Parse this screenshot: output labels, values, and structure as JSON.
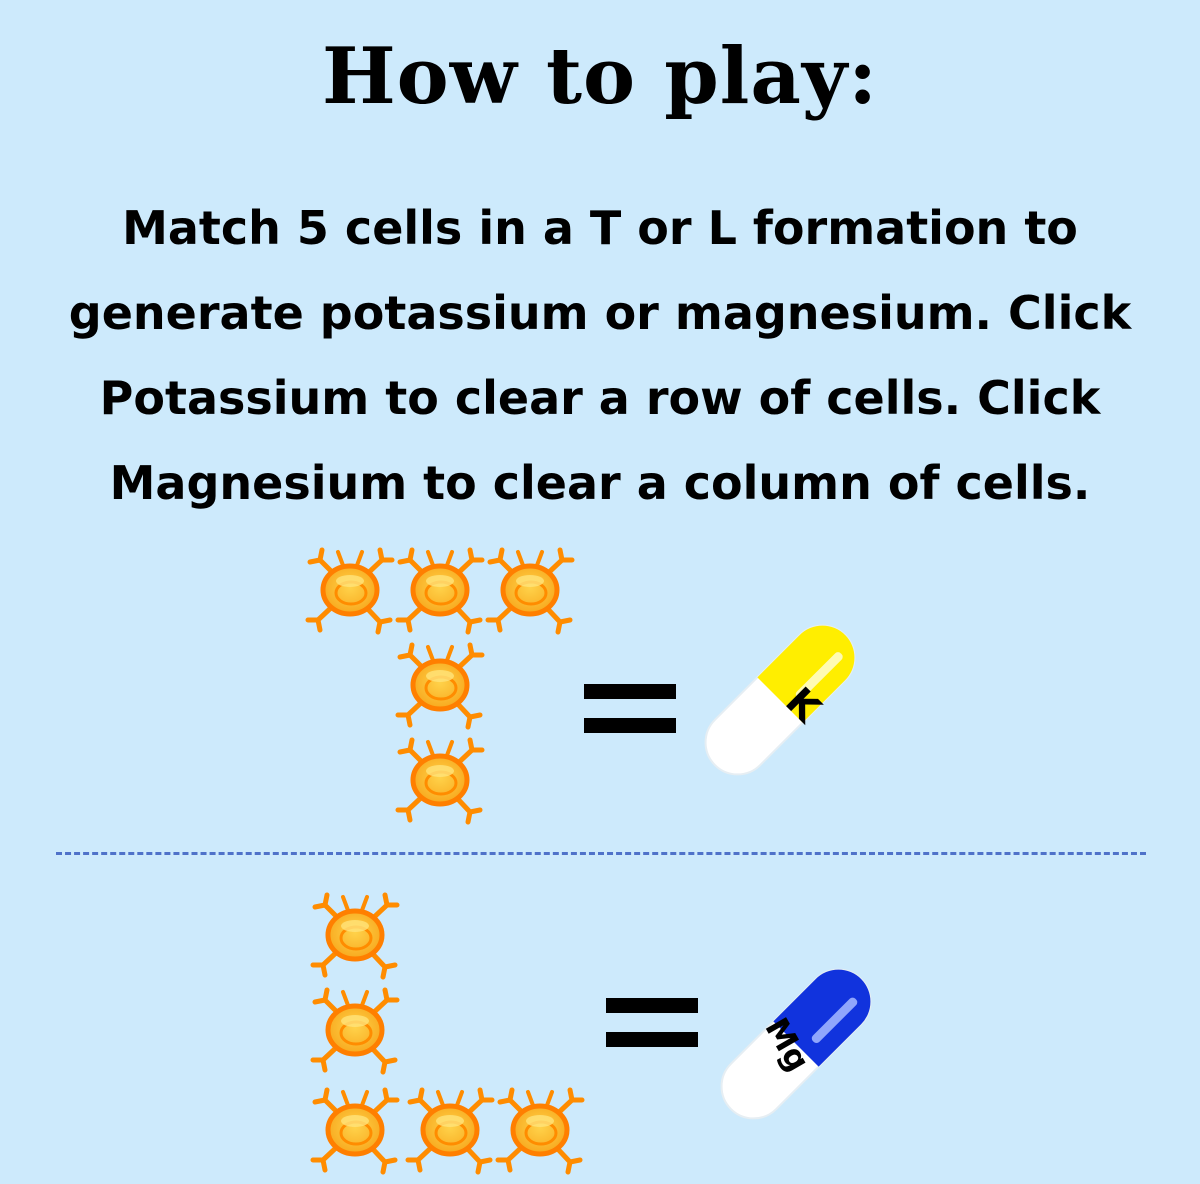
{
  "title": "How to play:",
  "instructions": "Match 5 cells in a T or L formation to generate potassium or magnesium. Click Potassium to clear a row of cells. Click Magnesium to clear a column of cells.",
  "formations": [
    {
      "shape": "T",
      "pill": {
        "label": "K",
        "cap_color": "#ffee00",
        "body_color": "#ffffff"
      }
    },
    {
      "shape": "L",
      "pill": {
        "label": "Mg",
        "cap_color": "#1133dd",
        "body_color": "#ffffff"
      }
    }
  ],
  "colors": {
    "background": "#cdeafc",
    "cell_fill": "#fbb81c",
    "cell_outline": "#ff7f00",
    "divider": "#4f72c9"
  }
}
